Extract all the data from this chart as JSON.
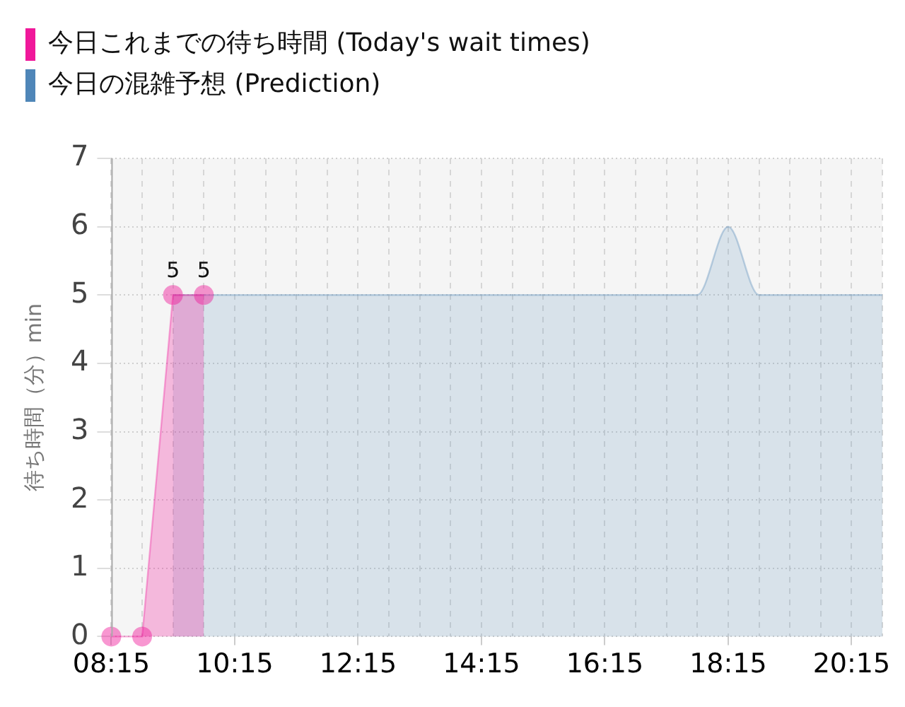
{
  "chart_data": {
    "type": "area",
    "ylabel": "待ち時間（分）min",
    "series": [
      {
        "name": "今日これまでの待ち時間 (Today's wait times)",
        "color": "#f0189a",
        "marker": "circle",
        "x": [
          8.25,
          8.75,
          9.25,
          9.75
        ],
        "values": [
          0,
          0,
          5,
          5
        ],
        "value_labels": [
          null,
          null,
          "5",
          "5"
        ]
      },
      {
        "name": "今日の混雑予想 (Prediction)",
        "color": "#4f86b8",
        "marker": "none",
        "x": [
          9.25,
          9.75,
          10.25,
          10.75,
          11.25,
          11.75,
          12.25,
          12.75,
          13.25,
          13.75,
          14.25,
          14.75,
          15.25,
          15.75,
          16.25,
          16.75,
          17.25,
          17.75,
          18.25,
          18.75,
          19.25,
          19.75,
          20.25,
          20.75
        ],
        "values": [
          5,
          5,
          5,
          5,
          5,
          5,
          5,
          5,
          5,
          5,
          5,
          5,
          5,
          5,
          5,
          5,
          5,
          5,
          6,
          5,
          5,
          5,
          5,
          5
        ]
      }
    ],
    "xlim": [
      8.25,
      20.75
    ],
    "xticks": [
      {
        "value": 8.25,
        "label": "08:15"
      },
      {
        "value": 8.75,
        "label": null
      },
      {
        "value": 9.25,
        "label": null
      },
      {
        "value": 9.75,
        "label": null
      },
      {
        "value": 10.25,
        "label": "10:15"
      },
      {
        "value": 10.75,
        "label": null
      },
      {
        "value": 11.25,
        "label": null
      },
      {
        "value": 11.75,
        "label": null
      },
      {
        "value": 12.25,
        "label": "12:15"
      },
      {
        "value": 12.75,
        "label": null
      },
      {
        "value": 13.25,
        "label": null
      },
      {
        "value": 13.75,
        "label": null
      },
      {
        "value": 14.25,
        "label": "14:15"
      },
      {
        "value": 14.75,
        "label": null
      },
      {
        "value": 15.25,
        "label": null
      },
      {
        "value": 15.75,
        "label": null
      },
      {
        "value": 16.25,
        "label": "16:15"
      },
      {
        "value": 16.75,
        "label": null
      },
      {
        "value": 17.25,
        "label": null
      },
      {
        "value": 17.75,
        "label": null
      },
      {
        "value": 18.25,
        "label": "18:15"
      },
      {
        "value": 18.75,
        "label": null
      },
      {
        "value": 19.25,
        "label": null
      },
      {
        "value": 19.75,
        "label": null
      },
      {
        "value": 20.25,
        "label": "20:15"
      },
      {
        "value": 20.75,
        "label": null
      }
    ],
    "ylim": [
      0,
      7
    ],
    "yticks": [
      0,
      1,
      2,
      3,
      4,
      5,
      6,
      7
    ],
    "grid": true,
    "legend": "top left"
  }
}
